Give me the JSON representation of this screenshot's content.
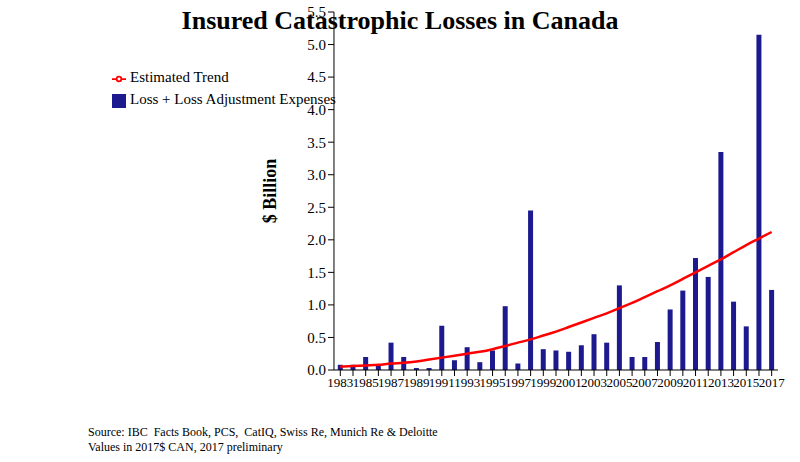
{
  "chart_data": {
    "type": "bar",
    "title": "Insured Catastrophic Losses in Canada",
    "y_label": "$ Billion",
    "categories": [
      "1983",
      null,
      "1985",
      null,
      "1987",
      null,
      "1989",
      null,
      "1991",
      null,
      "1993",
      null,
      "1995",
      null,
      "1997",
      null,
      "1999",
      null,
      "2001",
      null,
      "2003",
      null,
      "2005",
      null,
      "2007",
      null,
      "2009",
      null,
      "2011",
      null,
      "2013",
      null,
      "2015",
      null,
      "2017"
    ],
    "series": [
      {
        "name": "Loss + Loss Adjustment Expenses",
        "type": "bar",
        "color": "#1c1a8e",
        "values": [
          0.08,
          0.08,
          0.2,
          0.08,
          0.42,
          0.2,
          0.03,
          0.03,
          0.68,
          0.15,
          0.35,
          0.12,
          0.3,
          0.98,
          0.1,
          2.45,
          0.32,
          0.3,
          0.28,
          0.38,
          0.55,
          0.42,
          1.3,
          0.2,
          0.2,
          0.43,
          0.93,
          1.22,
          1.72,
          1.43,
          3.35,
          1.05,
          0.67,
          5.15,
          1.23
        ]
      },
      {
        "name": "Estimated Trend",
        "type": "line",
        "color": "#ff0000",
        "values": [
          0.05,
          0.06,
          0.07,
          0.08,
          0.1,
          0.11,
          0.13,
          0.16,
          0.19,
          0.22,
          0.25,
          0.28,
          0.32,
          0.37,
          0.42,
          0.47,
          0.53,
          0.59,
          0.66,
          0.73,
          0.8,
          0.87,
          0.95,
          1.03,
          1.12,
          1.21,
          1.3,
          1.4,
          1.5,
          1.6,
          1.7,
          1.81,
          1.92,
          2.02,
          2.12
        ]
      }
    ],
    "ylim": [
      0,
      5.5
    ],
    "yticks": [
      {
        "value": 0,
        "label": "0.0"
      },
      0.5,
      {
        "value": 1,
        "label": "1.0"
      },
      1.5,
      {
        "value": 2,
        "label": "2.0"
      },
      2.5,
      {
        "value": 3,
        "label": "3.0"
      },
      3.5,
      {
        "value": 4,
        "label": "4.0"
      },
      4.5,
      {
        "value": 5,
        "label": "5.0"
      },
      5.5
    ],
    "grid": false,
    "legend": "upper left",
    "annotations": [
      "Source: IBC  Facts Book, PCS,  CatIQ, Swiss Re, Munich Re & Deloitte",
      "Values in 2017$ CAN, 2017 preliminary"
    ]
  }
}
